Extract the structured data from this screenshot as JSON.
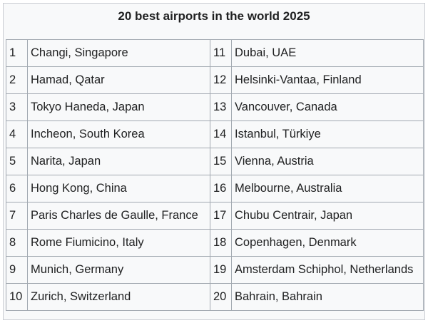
{
  "title": "20 best airports in the world 2025",
  "rows": [
    {
      "rank_left": "1",
      "name_left": "Changi, Singapore",
      "rank_right": "11",
      "name_right": "Dubai, UAE"
    },
    {
      "rank_left": "2",
      "name_left": "Hamad, Qatar",
      "rank_right": "12",
      "name_right": "Helsinki-Vantaa, Finland"
    },
    {
      "rank_left": "3",
      "name_left": "Tokyo Haneda, Japan",
      "rank_right": "13",
      "name_right": "Vancouver, Canada"
    },
    {
      "rank_left": "4",
      "name_left": "Incheon, South Korea",
      "rank_right": "14",
      "name_right": "Istanbul, Türkiye"
    },
    {
      "rank_left": "5",
      "name_left": "Narita, Japan",
      "rank_right": "15",
      "name_right": "Vienna, Austria"
    },
    {
      "rank_left": "6",
      "name_left": "Hong Kong, China",
      "rank_right": "16",
      "name_right": "Melbourne, Australia"
    },
    {
      "rank_left": "7",
      "name_left": "Paris Charles de Gaulle, France",
      "rank_right": "17",
      "name_right": "Chubu Centrair, Japan"
    },
    {
      "rank_left": "8",
      "name_left": "Rome Fiumicino, Italy",
      "rank_right": "18",
      "name_right": "Copenhagen, Denmark"
    },
    {
      "rank_left": "9",
      "name_left": "Munich, Germany",
      "rank_right": "19",
      "name_right": "Amsterdam Schiphol, Netherlands"
    },
    {
      "rank_left": "10",
      "name_left": "Zurich, Switzerland",
      "rank_right": "20",
      "name_right": "Bahrain, Bahrain"
    }
  ]
}
